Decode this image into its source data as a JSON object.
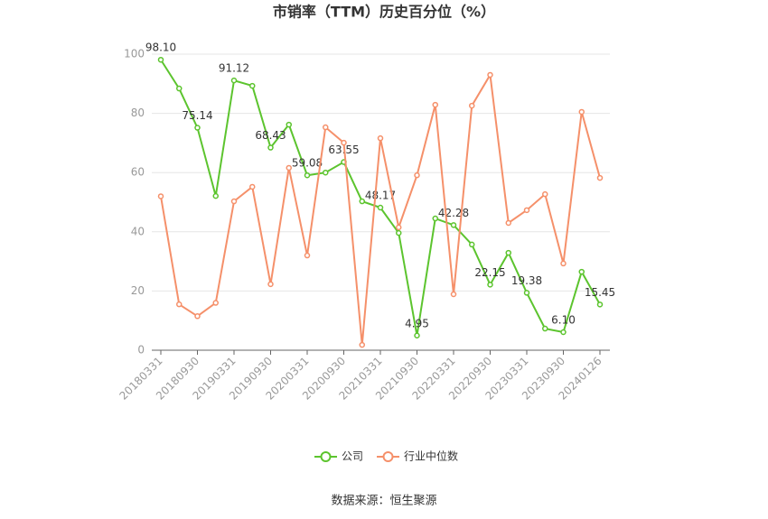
{
  "chart_data": {
    "type": "line",
    "title": "市销率（TTM）历史百分位（%）",
    "source": "数据来源：恒生聚源",
    "categories": [
      "20180331",
      null,
      "20180930",
      null,
      "20190331",
      null,
      "20190930",
      null,
      "20200331",
      null,
      "20200930",
      null,
      "20210331",
      null,
      "20210930",
      null,
      "20220331",
      null,
      "20220930",
      null,
      "20230331",
      null,
      "20230930",
      null,
      "20240126"
    ],
    "series": [
      {
        "name": "公司",
        "color": "#5cc42e",
        "values": [
          98.1,
          88.4,
          75.14,
          52.1,
          91.12,
          89.3,
          68.43,
          76.2,
          59.08,
          60,
          63.55,
          50.3,
          48.17,
          39.6,
          4.95,
          44.5,
          42.28,
          35.7,
          22.15,
          32.9,
          19.38,
          7.3,
          6.1,
          26.5,
          15.45
        ],
        "value_labels": [
          "98.10",
          null,
          "75.14",
          null,
          "91.12",
          null,
          "68.43",
          null,
          "59.08",
          null,
          "63.55",
          null,
          "48.17",
          null,
          "4.95",
          null,
          "42.28",
          null,
          "22.15",
          null,
          "19.38",
          null,
          "6.10",
          null,
          "15.45"
        ]
      },
      {
        "name": "行业中位数",
        "color": "#f5906a",
        "values": [
          52,
          15.5,
          11.5,
          16,
          50.3,
          55.2,
          22.3,
          61.6,
          32,
          75.3,
          70.1,
          1.8,
          71.6,
          41.5,
          59.1,
          82.9,
          18.9,
          82.6,
          93,
          43,
          47.3,
          52.7,
          29.3,
          80.5,
          58.2
        ]
      }
    ],
    "ylim": [
      0,
      100
    ],
    "yticks": [
      0,
      20,
      40,
      60,
      80,
      100
    ],
    "grid": true
  }
}
